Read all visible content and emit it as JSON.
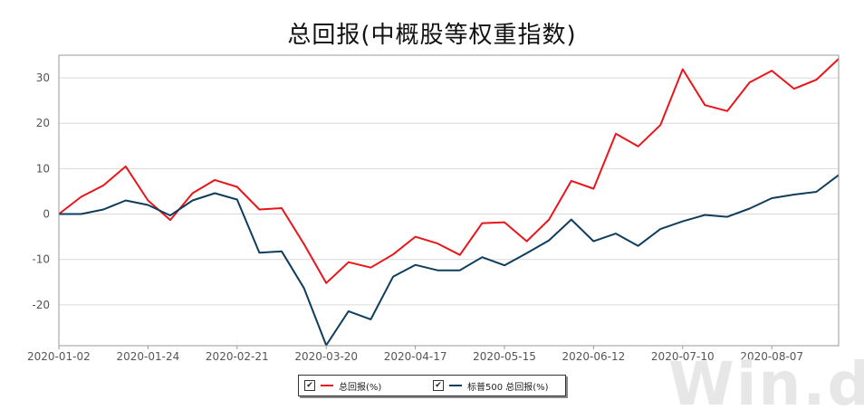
{
  "chart_data": {
    "type": "line",
    "title": "总回报(中概股等权重指数)",
    "xlabel": "",
    "ylabel": "",
    "ylim": [
      -29,
      35
    ],
    "yticks": [
      -20,
      -10,
      0,
      10,
      20,
      30
    ],
    "grid": true,
    "legend_position": "bottom-center",
    "x_tick_labels": [
      "2020-01-02",
      "2020-01-24",
      "2020-02-21",
      "2020-03-20",
      "2020-04-17",
      "2020-05-15",
      "2020-06-12",
      "2020-07-10",
      "2020-08-07"
    ],
    "series": [
      {
        "name": "总回报(%)",
        "color": "#e8151b",
        "values": [
          0,
          3.8,
          6.3,
          10.5,
          3.0,
          -1.3,
          4.6,
          7.5,
          6.0,
          1.0,
          1.3,
          -6.6,
          -15.2,
          -10.6,
          -11.8,
          -8.9,
          -5.0,
          -6.5,
          -9.0,
          -2.0,
          -1.8,
          -6.0,
          -1.2,
          7.3,
          5.6,
          17.7,
          14.9,
          19.6,
          31.9,
          24.0,
          22.7,
          29.0,
          31.6,
          27.6,
          29.6,
          34.2
        ]
      },
      {
        "name": "标普500 总回报(%)",
        "color": "#0f3d5c",
        "values": [
          0,
          0,
          1.0,
          3.0,
          2.0,
          -0.3,
          3.0,
          4.6,
          3.2,
          -8.5,
          -8.2,
          -16.3,
          -28.9,
          -21.4,
          -23.2,
          -13.8,
          -11.2,
          -12.4,
          -12.4,
          -9.5,
          -11.3,
          -8.6,
          -5.8,
          -1.2,
          -6.0,
          -4.3,
          -7.0,
          -3.3,
          -1.6,
          -0.2,
          -0.6,
          1.2,
          3.5,
          4.3,
          4.9,
          8.6
        ]
      }
    ]
  },
  "watermark": "Win.d"
}
